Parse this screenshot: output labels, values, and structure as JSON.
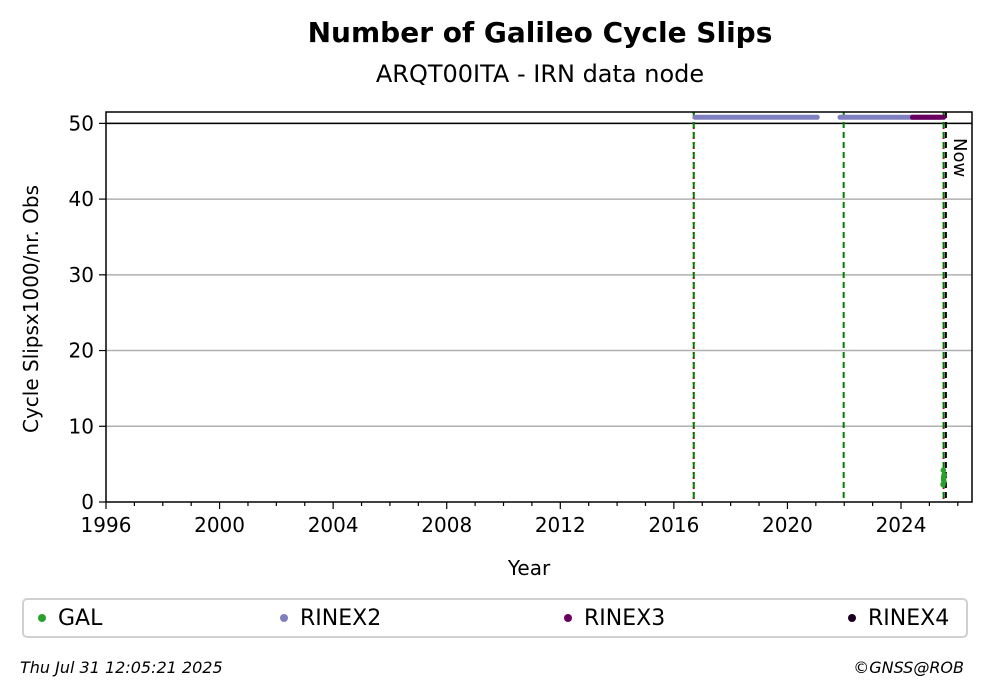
{
  "header": {
    "title": "Number of Galileo Cycle Slips",
    "subtitle": "ARQT00ITA - IRN data node"
  },
  "chart_data": {
    "type": "scatter",
    "title": "Number of Galileo Cycle Slips",
    "subtitle": "ARQT00ITA - IRN data node",
    "xlabel": "Year",
    "ylabel": "Cycle Slipsx1000/nr. Obs",
    "xlim": [
      1996,
      2026.5
    ],
    "ylim": [
      0,
      51.5
    ],
    "x_ticks": [
      1996,
      2000,
      2004,
      2008,
      2012,
      2016,
      2020,
      2024
    ],
    "y_ticks": [
      0,
      10,
      20,
      30,
      40,
      50
    ],
    "grid": "horizontal",
    "reference_line_y": 50,
    "now_label": "Now",
    "now_year": 2025.58,
    "vertical_lines": [
      {
        "x": 2016.7,
        "color": "#cc0000",
        "style": "dotted"
      },
      {
        "x": 2016.7,
        "color": "#008000",
        "style": "dashed"
      },
      {
        "x": 2021.98,
        "color": "#008000",
        "style": "dashed"
      },
      {
        "x": 2025.5,
        "color": "#cc0000",
        "style": "dotted"
      },
      {
        "x": 2025.5,
        "color": "#008000",
        "style": "dashed"
      }
    ],
    "series": [
      {
        "name": "GAL",
        "color": "#2ca02c",
        "x": [
          2025.48,
          2025.5,
          2025.52,
          2025.49,
          2025.51,
          2025.5
        ],
        "y": [
          2.3,
          3.0,
          3.6,
          4.2,
          2.7,
          3.3
        ]
      },
      {
        "name": "RINEX2",
        "color": "#8080c0",
        "segments": [
          [
            2016.75,
            2021.05
          ],
          [
            2021.85,
            2025.4
          ]
        ],
        "y": 50.8
      },
      {
        "name": "RINEX3",
        "color": "#6a005f",
        "segments": [
          [
            2024.4,
            2025.5
          ]
        ],
        "y": 50.8
      },
      {
        "name": "RINEX4",
        "color": "#1a0020",
        "segments": [],
        "y": 50.8
      }
    ],
    "legend_position": "bottom"
  },
  "footer": {
    "timestamp": "Thu Jul 31 12:05:21 2025",
    "copyright": "©GNSS@ROB"
  }
}
